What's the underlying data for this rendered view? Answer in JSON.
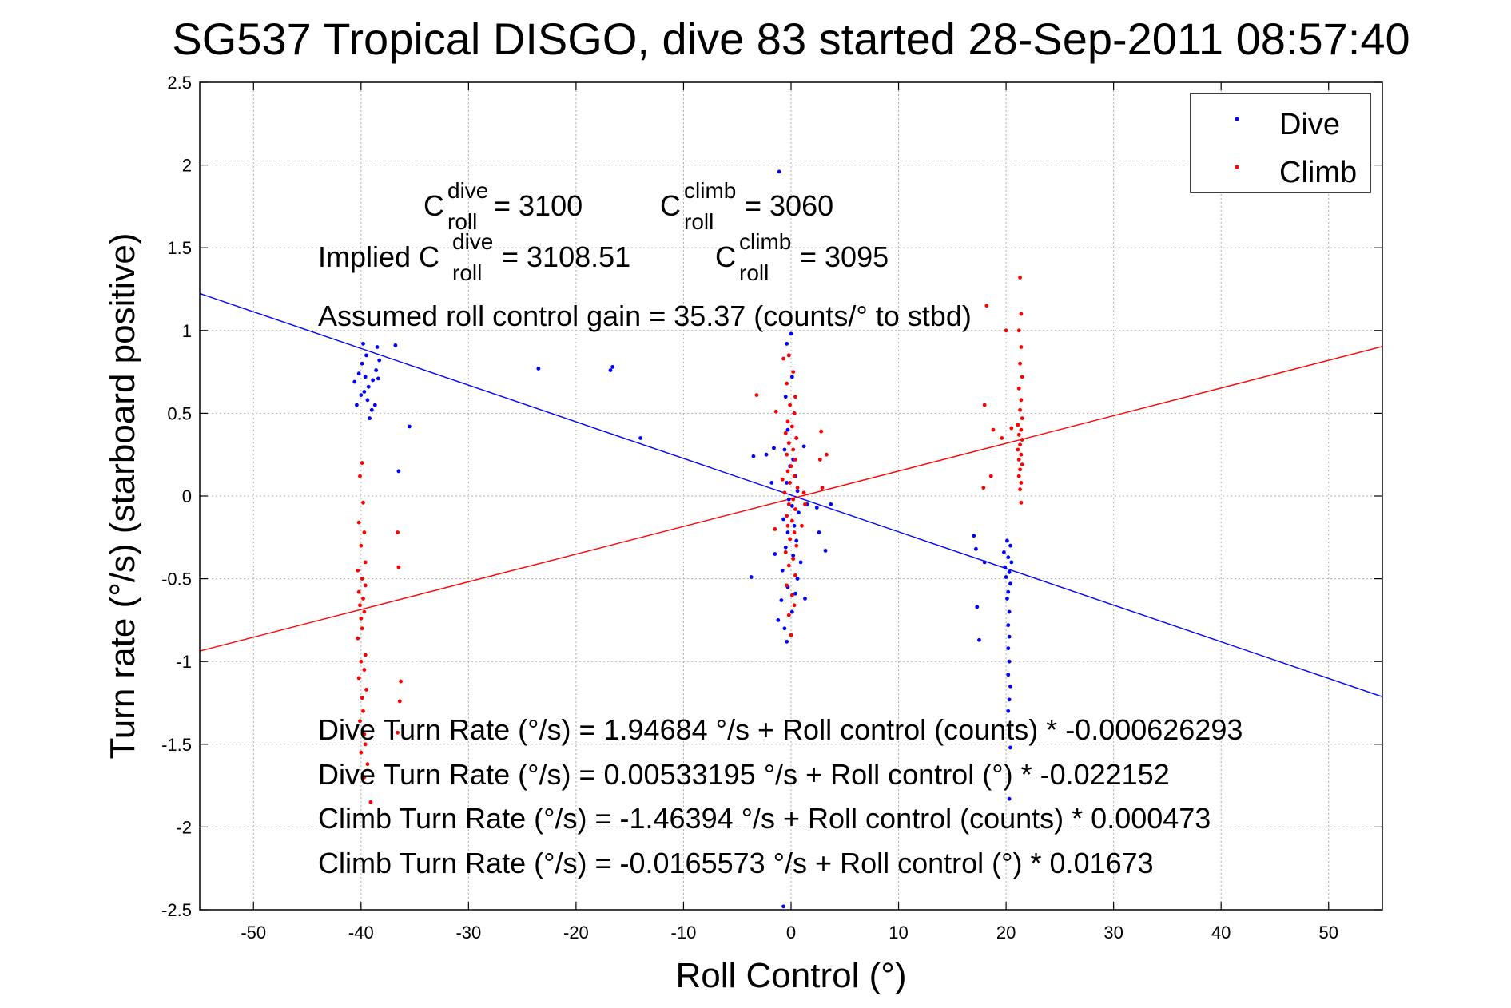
{
  "chart_data": {
    "type": "scatter",
    "title": "SG537 Tropical DISGO, dive 83 started 28-Sep-2011 08:57:40",
    "xlabel": "Roll Control (°)",
    "ylabel": "Turn rate (°/s)  (starboard positive)",
    "xlim": [
      -55,
      55
    ],
    "ylim": [
      -2.5,
      2.5
    ],
    "xticks": [
      -50,
      -40,
      -30,
      -20,
      -10,
      0,
      10,
      20,
      30,
      40,
      50
    ],
    "yticks": [
      -2.5,
      -2,
      -1.5,
      -1,
      -0.5,
      0,
      0.5,
      1,
      1.5,
      2,
      2.5
    ],
    "xtick_labels": [
      "-50",
      "-40",
      "-30",
      "-20",
      "-10",
      "0",
      "10",
      "20",
      "30",
      "40",
      "50"
    ],
    "ytick_labels": [
      "-2.5",
      "-2",
      "-1.5",
      "-1",
      "-0.5",
      "0",
      "0.5",
      "1",
      "1.5",
      "2",
      "2.5"
    ],
    "grid": true,
    "legend_placement": "top-right",
    "colors": {
      "dive": "#0000ff",
      "climb": "#ff0000"
    },
    "series": [
      {
        "name": "Dive",
        "points": [
          [
            -39.8,
            0.92
          ],
          [
            -39.5,
            0.85
          ],
          [
            -39.9,
            0.8
          ],
          [
            -40.2,
            0.74
          ],
          [
            -39.6,
            0.72
          ],
          [
            -38.9,
            0.7
          ],
          [
            -39.3,
            0.66
          ],
          [
            -39.7,
            0.63
          ],
          [
            -40.0,
            0.61
          ],
          [
            -39.4,
            0.58
          ],
          [
            -40.4,
            0.55
          ],
          [
            -39.0,
            0.52
          ],
          [
            -40.6,
            0.69
          ],
          [
            -39.2,
            0.47
          ],
          [
            -38.5,
            0.9
          ],
          [
            -38.3,
            0.82
          ],
          [
            -38.6,
            0.76
          ],
          [
            -38.4,
            0.71
          ],
          [
            -38.7,
            0.55
          ],
          [
            -36.8,
            0.91
          ],
          [
            -35.5,
            0.42
          ],
          [
            -36.5,
            0.15
          ],
          [
            -23.5,
            0.77
          ],
          [
            -16.8,
            0.76
          ],
          [
            -16.6,
            0.78
          ],
          [
            -14.0,
            0.35
          ],
          [
            0.0,
            0.98
          ],
          [
            -0.4,
            0.92
          ],
          [
            -0.2,
            0.85
          ],
          [
            0.1,
            0.72
          ],
          [
            -0.5,
            0.6
          ],
          [
            0.3,
            0.5
          ],
          [
            -0.3,
            0.4
          ],
          [
            0.5,
            0.35
          ],
          [
            -0.6,
            0.28
          ],
          [
            0.2,
            0.22
          ],
          [
            -0.1,
            0.18
          ],
          [
            0.4,
            0.12
          ],
          [
            -0.4,
            0.08
          ],
          [
            0.6,
            0.03
          ],
          [
            -0.2,
            -0.02
          ],
          [
            0.1,
            -0.06
          ],
          [
            0.7,
            -0.1
          ],
          [
            -0.7,
            -0.14
          ],
          [
            0.3,
            -0.18
          ],
          [
            -0.3,
            -0.22
          ],
          [
            0.5,
            -0.27
          ],
          [
            -0.5,
            -0.31
          ],
          [
            0.2,
            -0.36
          ],
          [
            0.9,
            -0.4
          ],
          [
            -0.8,
            -0.45
          ],
          [
            0.6,
            -0.5
          ],
          [
            -0.3,
            -0.55
          ],
          [
            0.4,
            -0.59
          ],
          [
            -0.9,
            -0.63
          ],
          [
            0.1,
            -0.7
          ],
          [
            -1.2,
            -0.75
          ],
          [
            -0.6,
            -0.8
          ],
          [
            -0.4,
            -0.88
          ],
          [
            -1.1,
            1.96
          ],
          [
            -1.6,
            0.29
          ],
          [
            -2.3,
            0.25
          ],
          [
            -3.5,
            0.24
          ],
          [
            -1.8,
            0.08
          ],
          [
            1.2,
            0.3
          ],
          [
            1.5,
            -0.05
          ],
          [
            2.4,
            -0.07
          ],
          [
            3.7,
            -0.05
          ],
          [
            2.6,
            -0.22
          ],
          [
            3.2,
            -0.33
          ],
          [
            -3.7,
            -0.49
          ],
          [
            -1.5,
            -0.35
          ],
          [
            1.3,
            -0.62
          ],
          [
            -0.7,
            -2.48
          ],
          [
            20.1,
            -0.27
          ],
          [
            20.4,
            -0.3
          ],
          [
            19.8,
            -0.34
          ],
          [
            20.2,
            -0.37
          ],
          [
            20.5,
            -0.4
          ],
          [
            19.9,
            -0.43
          ],
          [
            20.3,
            -0.46
          ],
          [
            20.0,
            -0.49
          ],
          [
            20.4,
            -0.53
          ],
          [
            20.2,
            -0.58
          ],
          [
            20.1,
            -0.62
          ],
          [
            20.3,
            -0.7
          ],
          [
            20.2,
            -0.78
          ],
          [
            20.3,
            -0.85
          ],
          [
            20.2,
            -0.92
          ],
          [
            20.3,
            -1.0
          ],
          [
            20.2,
            -1.08
          ],
          [
            20.4,
            -1.15
          ],
          [
            20.3,
            -1.23
          ],
          [
            20.2,
            -1.3
          ],
          [
            20.4,
            -1.52
          ],
          [
            20.3,
            -1.83
          ],
          [
            17.0,
            -0.24
          ],
          [
            17.2,
            -0.32
          ],
          [
            17.3,
            -0.67
          ],
          [
            17.5,
            -0.87
          ],
          [
            18.0,
            -0.4
          ]
        ]
      },
      {
        "name": "Climb",
        "points": [
          [
            -39.9,
            0.2
          ],
          [
            -40.1,
            0.12
          ],
          [
            -39.8,
            -0.04
          ],
          [
            -40.2,
            -0.16
          ],
          [
            -39.7,
            -0.22
          ],
          [
            -40.0,
            -0.3
          ],
          [
            -39.6,
            -0.4
          ],
          [
            -40.3,
            -0.45
          ],
          [
            -39.9,
            -0.5
          ],
          [
            -39.6,
            -0.54
          ],
          [
            -40.2,
            -0.58
          ],
          [
            -39.8,
            -0.62
          ],
          [
            -40.1,
            -0.66
          ],
          [
            -39.7,
            -0.7
          ],
          [
            -40.0,
            -0.74
          ],
          [
            -39.9,
            -0.8
          ],
          [
            -40.3,
            -0.86
          ],
          [
            -39.6,
            -0.96
          ],
          [
            -40.0,
            -1.0
          ],
          [
            -39.7,
            -1.05
          ],
          [
            -40.2,
            -1.1
          ],
          [
            -39.5,
            -1.17
          ],
          [
            -39.9,
            -1.22
          ],
          [
            -39.8,
            -1.3
          ],
          [
            -40.1,
            -1.36
          ],
          [
            -39.7,
            -1.44
          ],
          [
            -39.6,
            -1.5
          ],
          [
            -40.0,
            -1.55
          ],
          [
            -39.4,
            -1.62
          ],
          [
            -39.7,
            -1.7
          ],
          [
            -39.1,
            -1.85
          ],
          [
            -36.6,
            -0.22
          ],
          [
            -36.5,
            -0.43
          ],
          [
            -36.3,
            -1.12
          ],
          [
            -36.4,
            -1.24
          ],
          [
            -36.6,
            -1.43
          ],
          [
            -0.2,
            0.85
          ],
          [
            0.2,
            0.75
          ],
          [
            -0.4,
            0.68
          ],
          [
            0.4,
            0.6
          ],
          [
            -0.1,
            0.55
          ],
          [
            0.3,
            0.5
          ],
          [
            -0.3,
            0.45
          ],
          [
            0.1,
            0.42
          ],
          [
            -0.5,
            0.38
          ],
          [
            0.5,
            0.35
          ],
          [
            -0.2,
            0.32
          ],
          [
            0.2,
            0.28
          ],
          [
            -0.4,
            0.25
          ],
          [
            0.4,
            0.22
          ],
          [
            0.0,
            0.18
          ],
          [
            -0.3,
            0.15
          ],
          [
            0.3,
            0.12
          ],
          [
            -0.1,
            0.08
          ],
          [
            0.6,
            0.05
          ],
          [
            -0.6,
            0.02
          ],
          [
            0.2,
            -0.02
          ],
          [
            -0.2,
            -0.05
          ],
          [
            0.4,
            -0.08
          ],
          [
            -0.4,
            -0.12
          ],
          [
            0.1,
            -0.15
          ],
          [
            -0.3,
            -0.18
          ],
          [
            0.3,
            -0.22
          ],
          [
            -0.1,
            -0.26
          ],
          [
            0.5,
            -0.3
          ],
          [
            -0.5,
            -0.34
          ],
          [
            0.2,
            -0.38
          ],
          [
            -0.2,
            -0.42
          ],
          [
            0.4,
            -0.48
          ],
          [
            -0.4,
            -0.54
          ],
          [
            0.1,
            -0.6
          ],
          [
            0.3,
            -0.66
          ],
          [
            -0.2,
            -0.72
          ],
          [
            0.0,
            -0.84
          ],
          [
            -3.2,
            0.61
          ],
          [
            -1.4,
            0.51
          ],
          [
            -0.7,
            0.83
          ],
          [
            2.8,
            0.39
          ],
          [
            2.7,
            0.22
          ],
          [
            2.9,
            0.05
          ],
          [
            3.3,
            0.25
          ],
          [
            1.2,
            0.02
          ],
          [
            1.3,
            -0.05
          ],
          [
            1.0,
            -0.18
          ],
          [
            -1.5,
            -0.2
          ],
          [
            -0.8,
            0.1
          ],
          [
            21.3,
            1.32
          ],
          [
            21.4,
            1.1
          ],
          [
            21.2,
            1.0
          ],
          [
            21.4,
            0.9
          ],
          [
            21.3,
            0.8
          ],
          [
            21.5,
            0.72
          ],
          [
            21.2,
            0.65
          ],
          [
            21.4,
            0.58
          ],
          [
            21.3,
            0.52
          ],
          [
            21.5,
            0.47
          ],
          [
            21.1,
            0.43
          ],
          [
            21.4,
            0.4
          ],
          [
            21.2,
            0.37
          ],
          [
            21.5,
            0.34
          ],
          [
            21.3,
            0.31
          ],
          [
            21.1,
            0.28
          ],
          [
            21.4,
            0.25
          ],
          [
            21.2,
            0.22
          ],
          [
            21.5,
            0.19
          ],
          [
            21.3,
            0.16
          ],
          [
            21.2,
            0.12
          ],
          [
            21.4,
            0.08
          ],
          [
            21.3,
            0.04
          ],
          [
            21.4,
            -0.04
          ],
          [
            18.2,
            1.15
          ],
          [
            18.0,
            0.55
          ],
          [
            18.8,
            0.4
          ],
          [
            19.6,
            0.35
          ],
          [
            18.6,
            0.12
          ],
          [
            17.9,
            0.05
          ],
          [
            20.5,
            0.41
          ],
          [
            20.0,
            1.0
          ]
        ]
      }
    ],
    "fit_lines": [
      {
        "name": "Dive",
        "intercept": 0.00533195,
        "slope": -0.022152
      },
      {
        "name": "Climb",
        "intercept": -0.0165573,
        "slope": 0.01673
      }
    ],
    "annotations": {
      "c_dive_base": "C",
      "c_dive_sup": "dive",
      "c_dive_sub": "roll",
      "c_dive_value": " = 3100",
      "c_climb_base": "C",
      "c_climb_sup": "climb",
      "c_climb_sub": "roll",
      "c_climb_value": " = 3060",
      "implied_prefix": "Implied C",
      "implied_dive_sup": "dive",
      "implied_dive_sub": "roll",
      "implied_dive_value": " = 3108.51",
      "implied_climb_base": "C",
      "implied_climb_sup": "climb",
      "implied_climb_sub": "roll",
      "implied_climb_value": " = 3095",
      "gain": "Assumed roll control gain = 35.37 (counts/° to stbd)",
      "eq1": "Dive Turn Rate (°/s) = 1.94684 °/s + Roll control (counts) * -0.000626293",
      "eq2": "Dive Turn Rate (°/s) = 0.00533195 °/s + Roll control (°) * -0.022152",
      "eq3": "Climb Turn Rate (°/s) = -1.46394 °/s + Roll control (counts) * 0.000473",
      "eq4": "Climb Turn Rate (°/s) = -0.0165573 °/s + Roll control (°) * 0.01673"
    }
  }
}
